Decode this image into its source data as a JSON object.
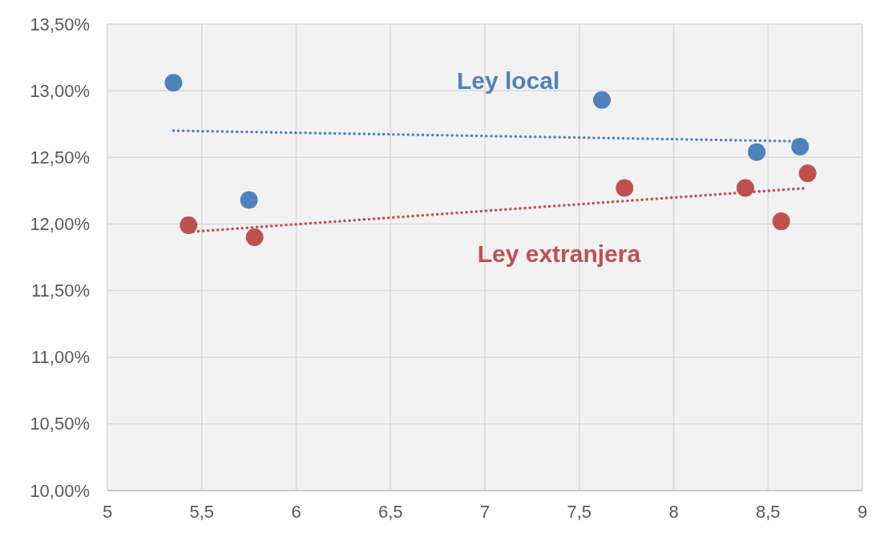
{
  "chart_data": {
    "type": "scatter",
    "xlim": [
      5,
      9
    ],
    "ylim": [
      10,
      13.5
    ],
    "xticks": [
      5,
      {
        "value": 5.5,
        "label": "5,5"
      },
      6,
      {
        "value": 6.5,
        "label": "6,5"
      },
      7,
      {
        "value": 7.5,
        "label": "7,5"
      },
      8,
      {
        "value": 8.5,
        "label": "8,5"
      },
      9
    ],
    "yticks": [
      {
        "value": 10,
        "label": "10,00%"
      },
      {
        "value": 10.5,
        "label": "10,50%"
      },
      {
        "value": 11,
        "label": "11,00%"
      },
      {
        "value": 11.5,
        "label": "11,50%"
      },
      {
        "value": 12,
        "label": "12,00%"
      },
      {
        "value": 12.5,
        "label": "12,50%"
      },
      {
        "value": 13,
        "label": "13,00%"
      },
      {
        "value": 13.5,
        "label": "13,50%"
      }
    ],
    "grid": true,
    "legend": false,
    "marker": "circle",
    "series": [
      {
        "name": "Ley local",
        "color": "#4f81bd",
        "x": [
          5.35,
          5.75,
          7.62,
          8.44,
          8.67
        ],
        "values": [
          13.06,
          12.18,
          12.93,
          12.54,
          12.58
        ]
      },
      {
        "name": "Ley extranjera",
        "color": "#c0504d",
        "x": [
          5.43,
          5.78,
          7.74,
          8.38,
          8.57,
          8.71
        ],
        "values": [
          11.99,
          11.9,
          12.27,
          12.27,
          12.02,
          12.38
        ]
      },
      {
        "type": "line",
        "line_style": "dotted",
        "marker": "none",
        "color": "#4f81bd",
        "x": [
          5.35,
          8.67
        ],
        "values": [
          12.7,
          12.62
        ]
      },
      {
        "type": "line",
        "line_style": "dotted",
        "marker": "none",
        "color": "#c0504d",
        "x": [
          5.43,
          8.71
        ],
        "values": [
          11.94,
          12.27
        ]
      }
    ]
  }
}
